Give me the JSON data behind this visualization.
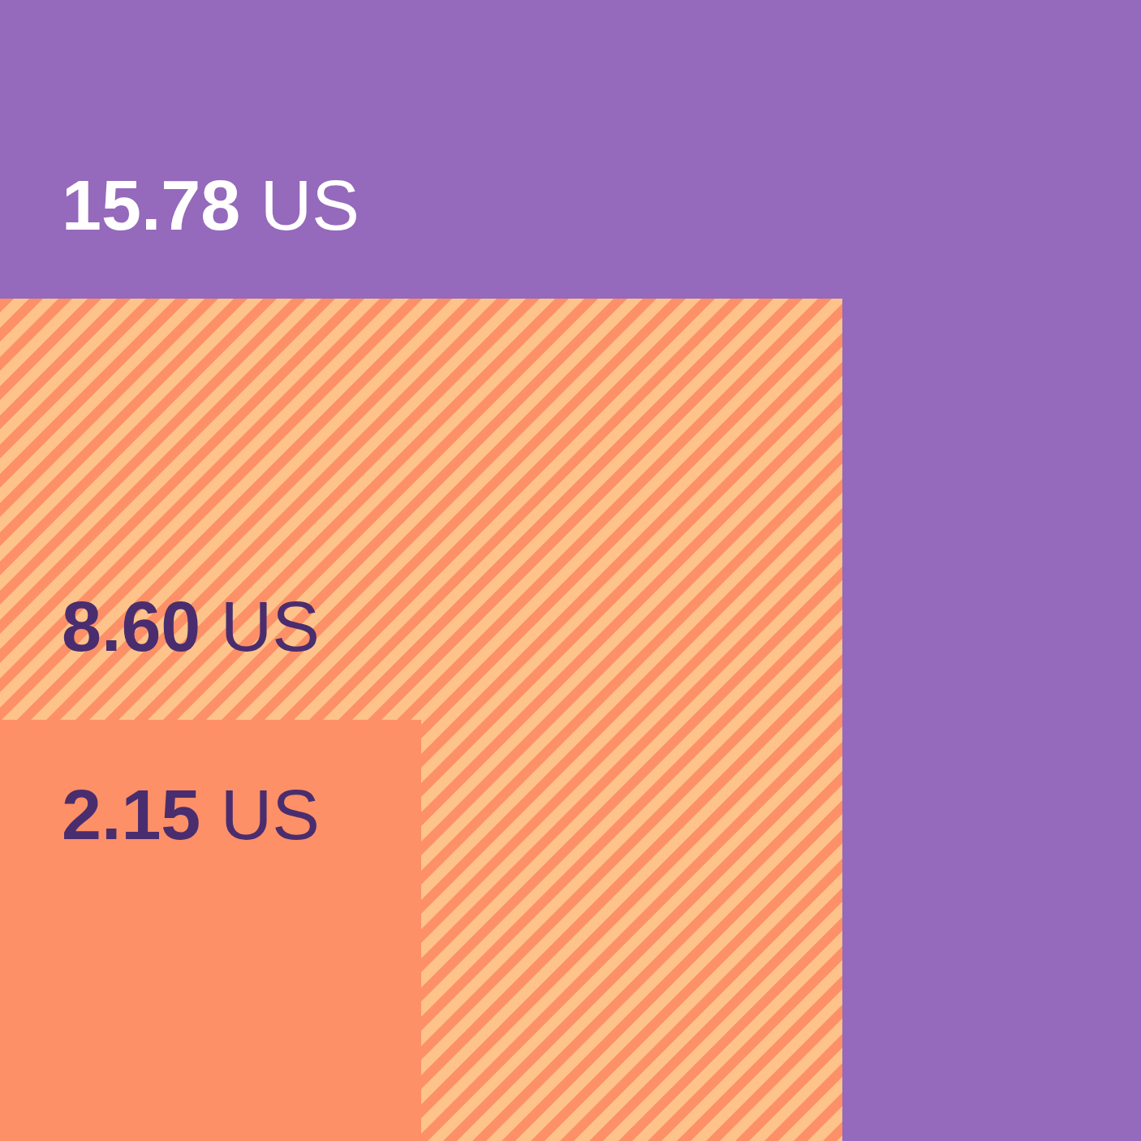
{
  "chart_data": {
    "type": "other",
    "categories": [
      null,
      null,
      null
    ],
    "values": [
      15.78,
      8.6,
      2.15
    ],
    "colors": [
      "#9569bb",
      "#fdc38a",
      "#fd9066"
    ],
    "value_labels": [
      "15.78 US",
      "8.60 US",
      "2.15 US"
    ]
  }
}
